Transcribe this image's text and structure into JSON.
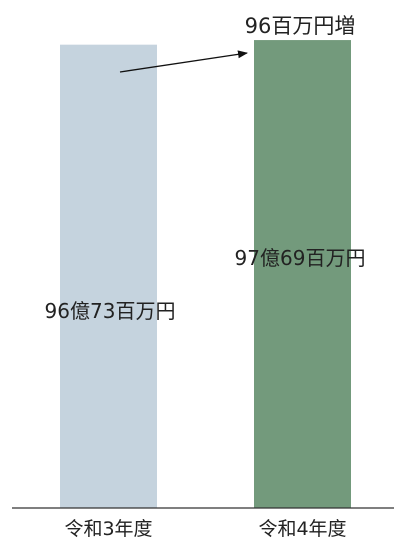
{
  "chart_data": {
    "type": "bar",
    "categories": [
      "令和3年度",
      "令和4年度"
    ],
    "values": [
      96.73,
      97.69
    ],
    "value_labels": [
      "96億73百万円",
      "97億69百万円"
    ],
    "annotation": "96百万円増",
    "colors": [
      "#c5d3de",
      "#739a7c"
    ],
    "ylim": [
      0,
      100
    ],
    "grid": false
  }
}
